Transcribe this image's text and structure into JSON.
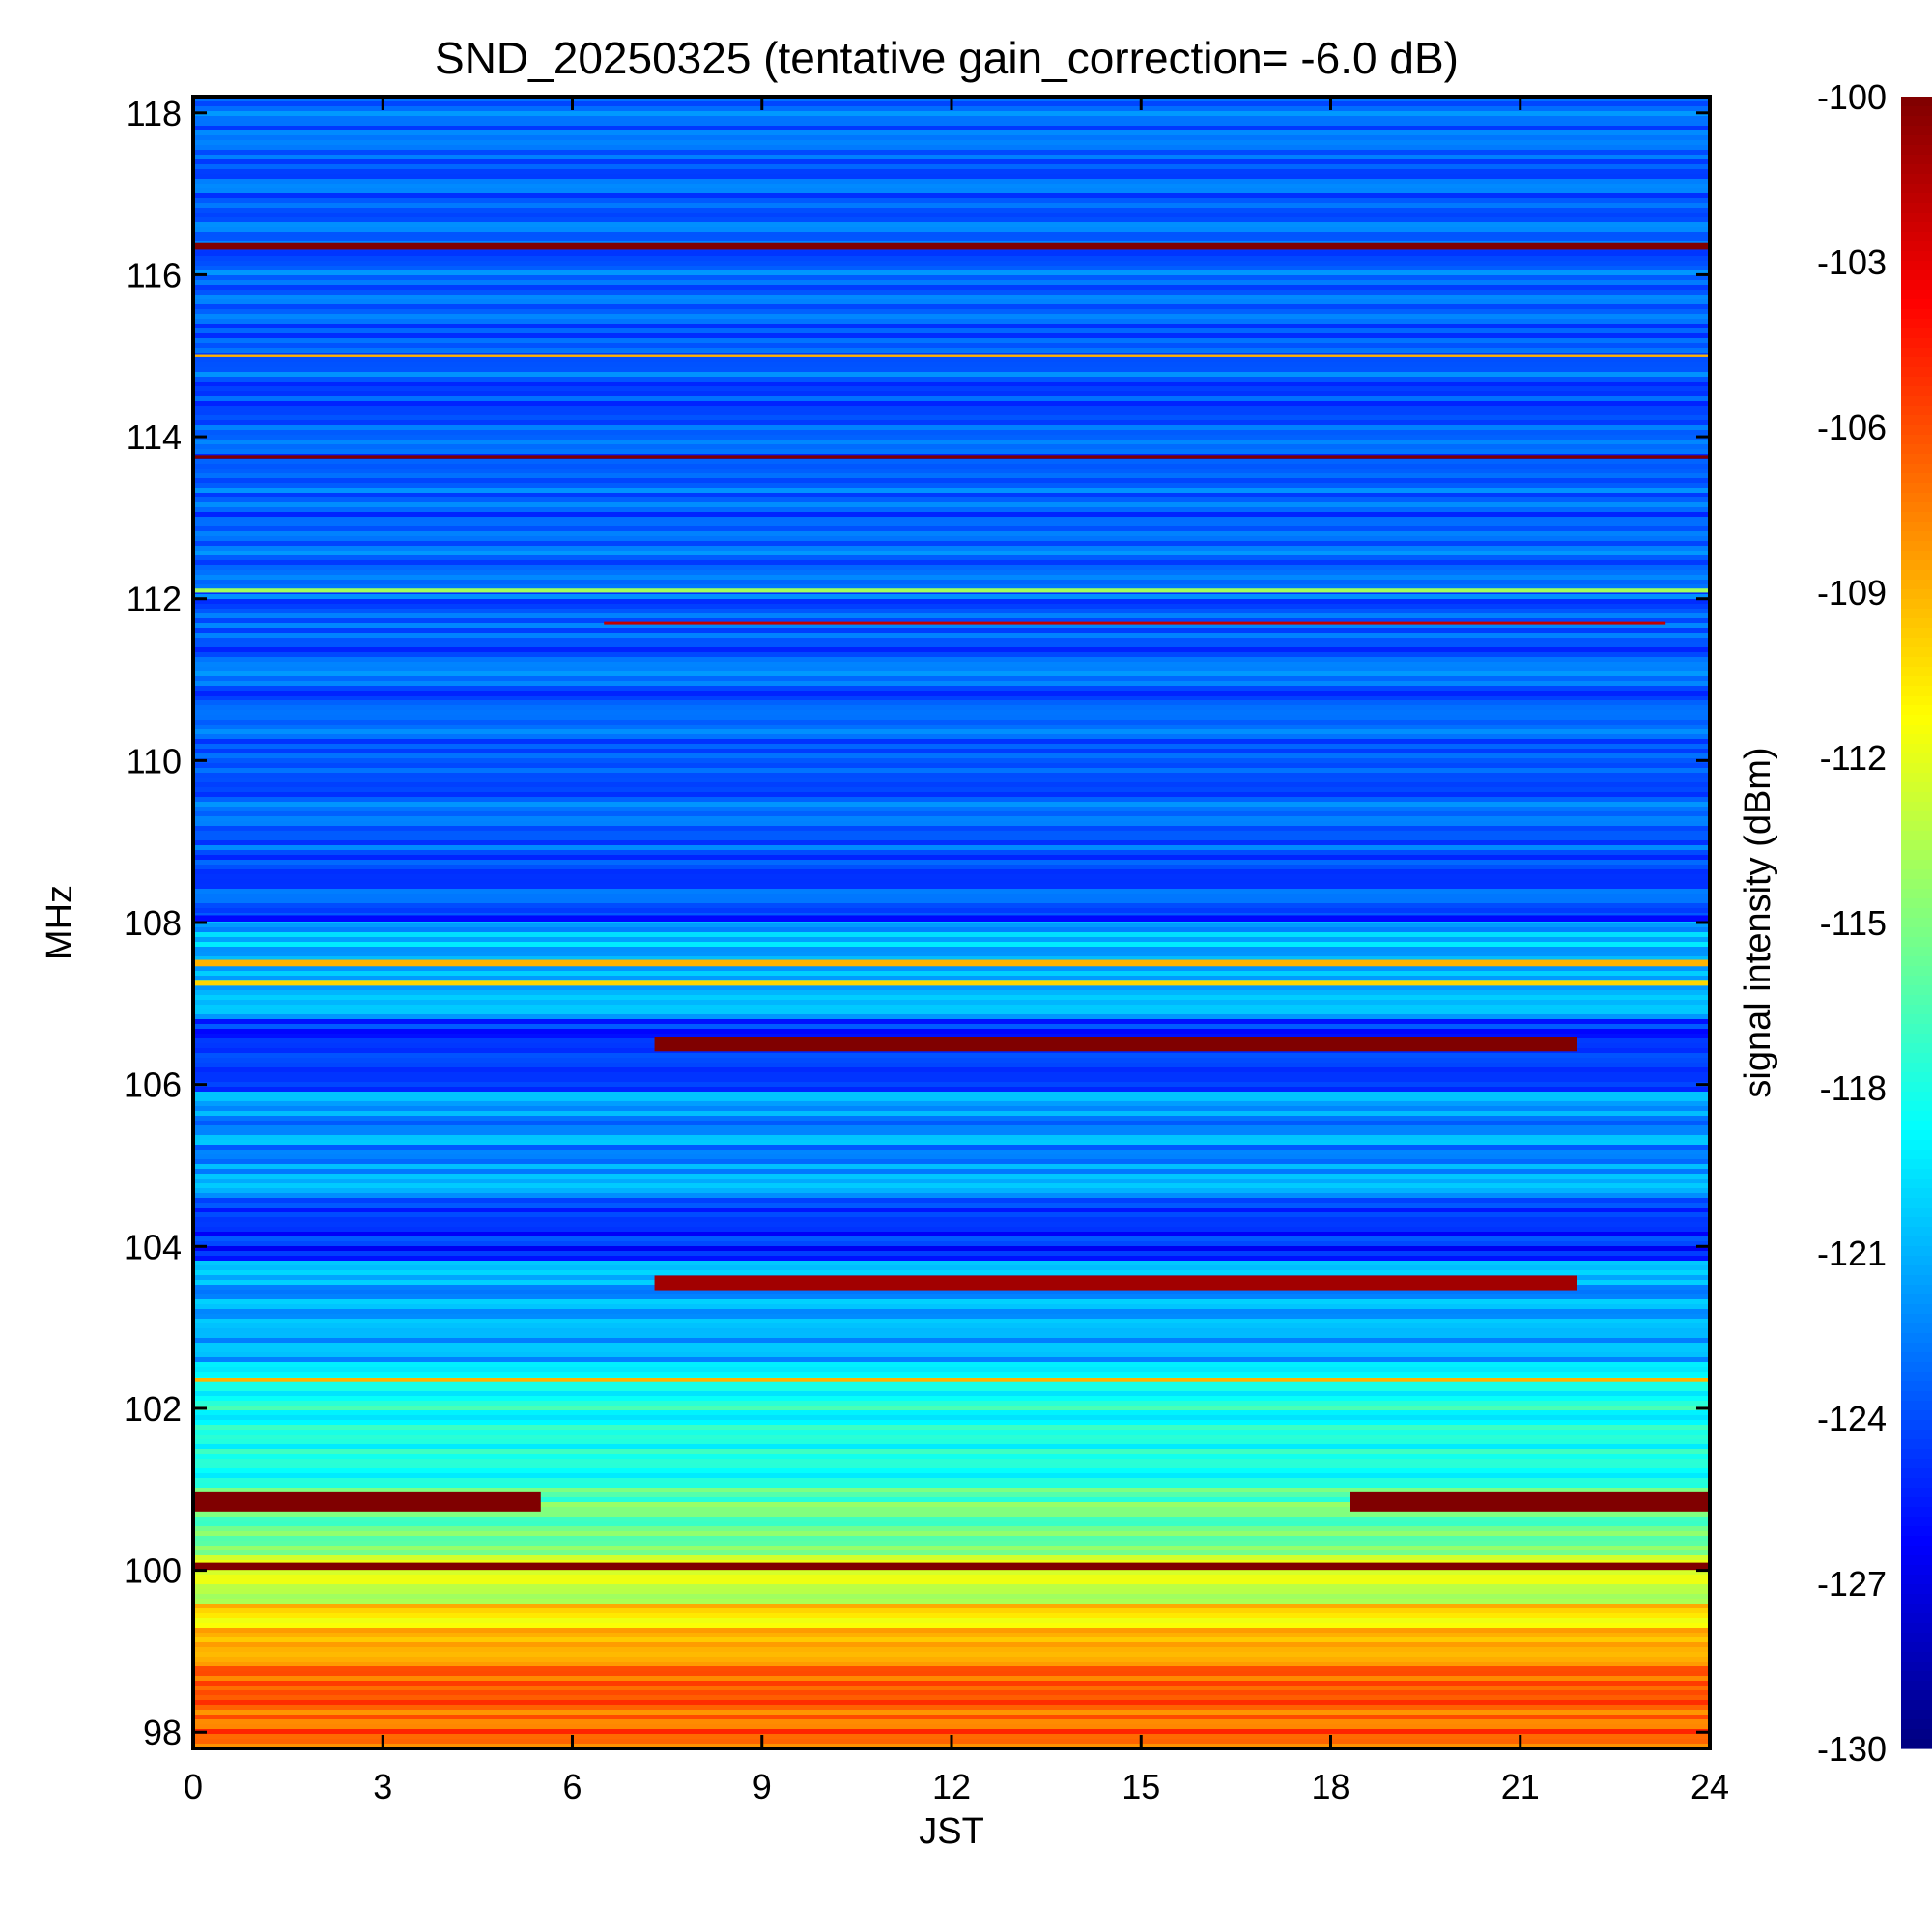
{
  "chart_data": {
    "type": "heatmap",
    "title": "SND_20250325 (tentative gain_correction= -6.0 dB)",
    "xlabel": "JST",
    "ylabel": "MHz",
    "xlim": [
      0,
      24
    ],
    "ylim": [
      97.8,
      118.2
    ],
    "x_ticks": [
      "0",
      "3",
      "6",
      "9",
      "12",
      "15",
      "18",
      "21",
      "24"
    ],
    "x_tick_values": [
      0,
      3,
      6,
      9,
      12,
      15,
      18,
      21,
      24
    ],
    "y_ticks": [
      "98",
      "100",
      "102",
      "104",
      "106",
      "108",
      "110",
      "112",
      "114",
      "116",
      "118"
    ],
    "y_tick_values": [
      98,
      100,
      102,
      104,
      106,
      108,
      110,
      112,
      114,
      116,
      118
    ],
    "colorbar": {
      "label": "signal intensity (dBm)",
      "range": [
        -130,
        -100
      ],
      "ticks": [
        "-100",
        "-103",
        "-106",
        "-109",
        "-112",
        "-115",
        "-118",
        "-121",
        "-124",
        "-127",
        "-130"
      ],
      "tick_values": [
        -100,
        -103,
        -106,
        -109,
        -112,
        -115,
        -118,
        -121,
        -124,
        -127,
        -130
      ],
      "colormap": "jet"
    },
    "background_bands": [
      {
        "f0": 108.05,
        "f1": 118.2,
        "level": -123.5
      },
      {
        "f0": 106.8,
        "f1": 108.05,
        "level": -121.0
      },
      {
        "f0": 105.9,
        "f1": 106.8,
        "level": -124.5
      },
      {
        "f0": 104.6,
        "f1": 105.9,
        "level": -122.0
      },
      {
        "f0": 103.8,
        "f1": 104.6,
        "level": -125.0
      },
      {
        "f0": 102.6,
        "f1": 103.8,
        "level": -121.5
      },
      {
        "f0": 101.0,
        "f1": 102.6,
        "level": -118.0
      },
      {
        "f0": 100.2,
        "f1": 101.0,
        "level": -116.0
      },
      {
        "f0": 99.6,
        "f1": 100.2,
        "level": -112.5
      },
      {
        "f0": 98.8,
        "f1": 99.6,
        "level": -110.0
      },
      {
        "f0": 97.8,
        "f1": 98.8,
        "level": -106.5
      }
    ],
    "signals": [
      {
        "freq": 116.35,
        "t0": 0,
        "t1": 24,
        "level": -100,
        "width": 0.08
      },
      {
        "freq": 115.0,
        "t0": 0,
        "t1": 24,
        "level": -109,
        "width": 0.04
      },
      {
        "freq": 113.75,
        "t0": 0,
        "t1": 24,
        "level": -100,
        "width": 0.04
      },
      {
        "freq": 112.1,
        "t0": 0,
        "t1": 24,
        "level": -114,
        "width": 0.05
      },
      {
        "freq": 111.7,
        "t0": 6.5,
        "t1": 23.3,
        "level": -102,
        "width": 0.03
      },
      {
        "freq": 108.05,
        "t0": 0,
        "t1": 24,
        "level": -126,
        "width": 0.08
      },
      {
        "freq": 107.5,
        "t0": 0,
        "t1": 24,
        "level": -109,
        "width": 0.08
      },
      {
        "freq": 107.25,
        "t0": 0,
        "t1": 24,
        "level": -110,
        "width": 0.06
      },
      {
        "freq": 106.5,
        "t0": 7.3,
        "t1": 21.9,
        "level": -100,
        "width": 0.18
      },
      {
        "freq": 103.55,
        "t0": 7.3,
        "t1": 21.9,
        "level": -101,
        "width": 0.18
      },
      {
        "freq": 102.35,
        "t0": 0,
        "t1": 24,
        "level": -109,
        "width": 0.05
      },
      {
        "freq": 100.85,
        "t0": 0,
        "t1": 5.5,
        "level": -100,
        "width": 0.25
      },
      {
        "freq": 100.85,
        "t0": 18.3,
        "t1": 24,
        "level": -100,
        "width": 0.25
      },
      {
        "freq": 100.05,
        "t0": 0,
        "t1": 24,
        "level": -100,
        "width": 0.09
      }
    ]
  }
}
